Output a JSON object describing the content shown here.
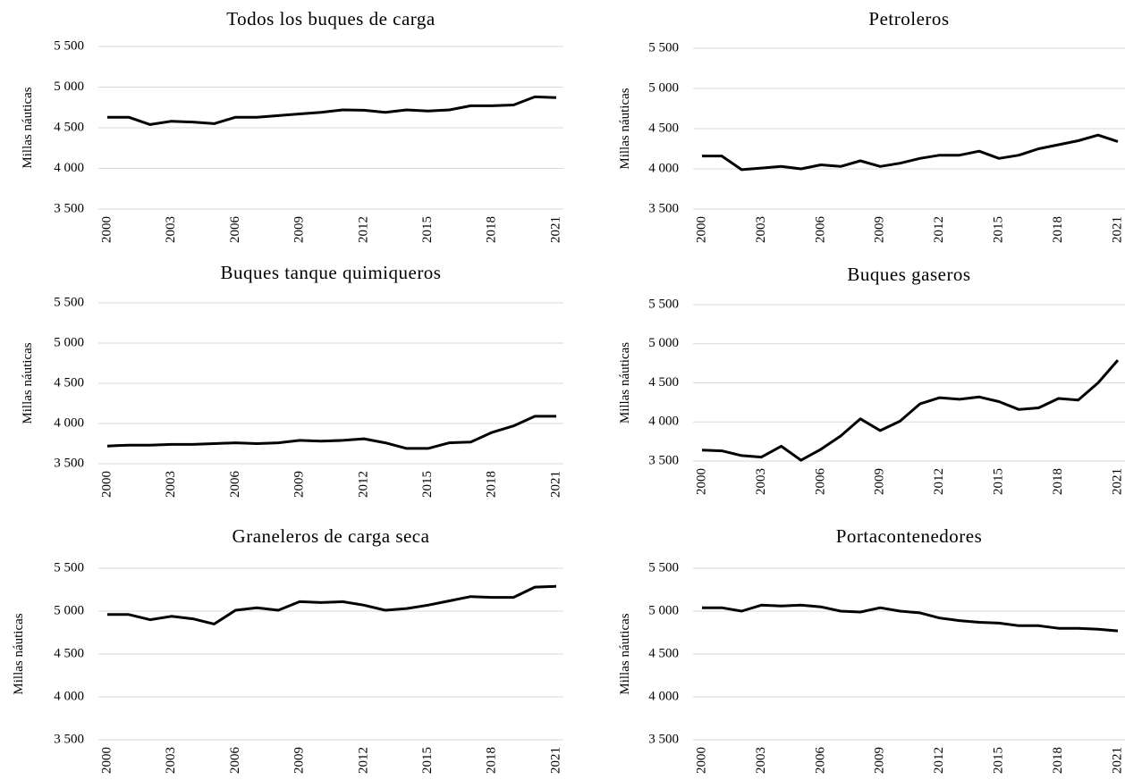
{
  "chart_data": [
    {
      "type": "line",
      "title": "Todos los buques de carga",
      "y_label": "Millas náuticas",
      "color": "#000000",
      "grid": true,
      "x": [
        2000,
        2001,
        2002,
        2003,
        2004,
        2005,
        2006,
        2007,
        2008,
        2009,
        2010,
        2011,
        2012,
        2013,
        2014,
        2015,
        2016,
        2017,
        2018,
        2019,
        2020,
        2021
      ],
      "values": [
        4630,
        4630,
        4540,
        4580,
        4570,
        4550,
        4630,
        4630,
        4650,
        4670,
        4690,
        4720,
        4715,
        4690,
        4720,
        4705,
        4720,
        4770,
        4770,
        4780,
        4880,
        4870
      ],
      "xlim": [
        2000,
        2021
      ],
      "xticks": [
        2000,
        2003,
        2006,
        2009,
        2012,
        2015,
        2018,
        2021
      ],
      "ylim": [
        3500,
        5500
      ],
      "yticks": [
        {
          "value": 3500,
          "label": "3 500"
        },
        {
          "value": 4000,
          "label": "4 000"
        },
        {
          "value": 4500,
          "label": "4 500"
        },
        {
          "value": 5000,
          "label": "5 000"
        },
        {
          "value": 5500,
          "label": "5 500"
        }
      ]
    },
    {
      "type": "line",
      "title": "Petroleros",
      "y_label": "Millas náuticas",
      "color": "#000000",
      "grid": true,
      "x": [
        2000,
        2001,
        2002,
        2003,
        2004,
        2005,
        2006,
        2007,
        2008,
        2009,
        2010,
        2011,
        2012,
        2013,
        2014,
        2015,
        2016,
        2017,
        2018,
        2019,
        2020,
        2021
      ],
      "values": [
        4160,
        4160,
        3990,
        4010,
        4030,
        4000,
        4050,
        4030,
        4100,
        4030,
        4070,
        4130,
        4170,
        4170,
        4220,
        4130,
        4170,
        4250,
        4300,
        4350,
        4420,
        4340
      ],
      "xlim": [
        2000,
        2021
      ],
      "xticks": [
        2000,
        2003,
        2006,
        2009,
        2012,
        2015,
        2018,
        2021
      ],
      "ylim": [
        3500,
        5500
      ],
      "yticks": [
        {
          "value": 3500,
          "label": "3 500"
        },
        {
          "value": 4000,
          "label": "4 000"
        },
        {
          "value": 4500,
          "label": "4 500"
        },
        {
          "value": 5000,
          "label": "5 000"
        },
        {
          "value": 5500,
          "label": "5 500"
        }
      ]
    },
    {
      "type": "line",
      "title": "Buques tanque quimiqueros",
      "y_label": "Millas náuticas",
      "color": "#000000",
      "grid": true,
      "x": [
        2000,
        2001,
        2002,
        2003,
        2004,
        2005,
        2006,
        2007,
        2008,
        2009,
        2010,
        2011,
        2012,
        2013,
        2014,
        2015,
        2016,
        2017,
        2018,
        2019,
        2020,
        2021
      ],
      "values": [
        3720,
        3730,
        3730,
        3740,
        3740,
        3750,
        3760,
        3750,
        3760,
        3790,
        3780,
        3790,
        3810,
        3760,
        3690,
        3690,
        3760,
        3770,
        3890,
        3970,
        4090,
        4090
      ],
      "xlim": [
        2000,
        2021
      ],
      "xticks": [
        2000,
        2003,
        2006,
        2009,
        2012,
        2015,
        2018,
        2021
      ],
      "ylim": [
        3500,
        5500
      ],
      "yticks": [
        {
          "value": 3500,
          "label": "3 500"
        },
        {
          "value": 4000,
          "label": "4 000"
        },
        {
          "value": 4500,
          "label": "4 500"
        },
        {
          "value": 5000,
          "label": "5 000"
        },
        {
          "value": 5500,
          "label": "5 500"
        }
      ]
    },
    {
      "type": "line",
      "title": "Buques gaseros",
      "y_label": "Millas náuticas",
      "color": "#000000",
      "grid": true,
      "x": [
        2000,
        2001,
        2002,
        2003,
        2004,
        2005,
        2006,
        2007,
        2008,
        2009,
        2010,
        2011,
        2012,
        2013,
        2014,
        2015,
        2016,
        2017,
        2018,
        2019,
        2020,
        2021
      ],
      "values": [
        3640,
        3630,
        3570,
        3550,
        3690,
        3510,
        3650,
        3820,
        4040,
        3890,
        4010,
        4230,
        4310,
        4290,
        4320,
        4260,
        4160,
        4180,
        4300,
        4280,
        4500,
        4790
      ],
      "xlim": [
        2000,
        2021
      ],
      "xticks": [
        2000,
        2003,
        2006,
        2009,
        2012,
        2015,
        2018,
        2021
      ],
      "ylim": [
        3500,
        5500
      ],
      "yticks": [
        {
          "value": 3500,
          "label": "3 500"
        },
        {
          "value": 4000,
          "label": "4 000"
        },
        {
          "value": 4500,
          "label": "4 500"
        },
        {
          "value": 5000,
          "label": "5 000"
        },
        {
          "value": 5500,
          "label": "5 500"
        }
      ]
    },
    {
      "type": "line",
      "title": "Graneleros de carga seca",
      "y_label": "Millas náuticas",
      "color": "#000000",
      "grid": true,
      "x": [
        2000,
        2001,
        2002,
        2003,
        2004,
        2005,
        2006,
        2007,
        2008,
        2009,
        2010,
        2011,
        2012,
        2013,
        2014,
        2015,
        2016,
        2017,
        2018,
        2019,
        2020,
        2021
      ],
      "values": [
        4960,
        4960,
        4900,
        4940,
        4910,
        4850,
        5010,
        5040,
        5010,
        5110,
        5100,
        5110,
        5070,
        5010,
        5030,
        5070,
        5120,
        5170,
        5160,
        5160,
        5280,
        5290
      ],
      "xlim": [
        2000,
        2021
      ],
      "xticks": [
        2000,
        2003,
        2006,
        2009,
        2012,
        2015,
        2018,
        2021
      ],
      "ylim": [
        3500,
        5500
      ],
      "yticks": [
        {
          "value": 3500,
          "label": "3 500"
        },
        {
          "value": 4000,
          "label": "4 000"
        },
        {
          "value": 4500,
          "label": "4 500"
        },
        {
          "value": 5000,
          "label": "5 000"
        },
        {
          "value": 5500,
          "label": "5 500"
        }
      ]
    },
    {
      "type": "line",
      "title": "Portacontenedores",
      "y_label": "Millas náuticas",
      "color": "#000000",
      "grid": true,
      "x": [
        2000,
        2001,
        2002,
        2003,
        2004,
        2005,
        2006,
        2007,
        2008,
        2009,
        2010,
        2011,
        2012,
        2013,
        2014,
        2015,
        2016,
        2017,
        2018,
        2019,
        2020,
        2021
      ],
      "values": [
        5040,
        5040,
        5000,
        5070,
        5060,
        5070,
        5050,
        5000,
        4990,
        5040,
        5000,
        4980,
        4920,
        4890,
        4870,
        4860,
        4830,
        4830,
        4800,
        4800,
        4790,
        4770
      ],
      "xlim": [
        2000,
        2021
      ],
      "xticks": [
        2000,
        2003,
        2006,
        2009,
        2012,
        2015,
        2018,
        2021
      ],
      "ylim": [
        3500,
        5500
      ],
      "yticks": [
        {
          "value": 3500,
          "label": "3 500"
        },
        {
          "value": 4000,
          "label": "4 000"
        },
        {
          "value": 4500,
          "label": "4 500"
        },
        {
          "value": 5000,
          "label": "5 000"
        },
        {
          "value": 5500,
          "label": "5 500"
        }
      ]
    }
  ]
}
